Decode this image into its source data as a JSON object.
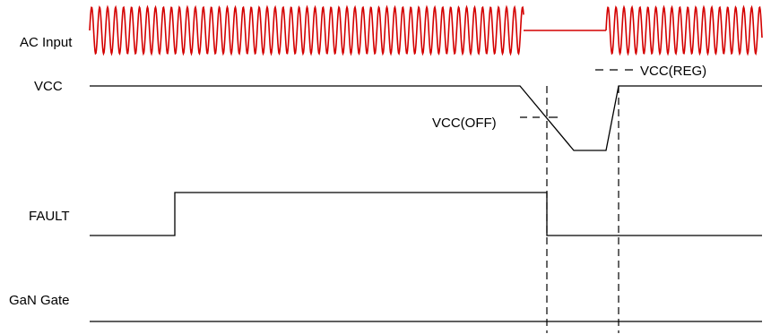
{
  "signals": {
    "ac_input": "AC Input",
    "vcc": "VCC",
    "fault": "FAULT",
    "gan_gate": "GaN Gate"
  },
  "annotations": {
    "vcc_off": "VCC(OFF)",
    "vcc_reg": "VCC(REG)"
  },
  "colors": {
    "ac_waveform": "#d40000",
    "traces": "#000000"
  }
}
